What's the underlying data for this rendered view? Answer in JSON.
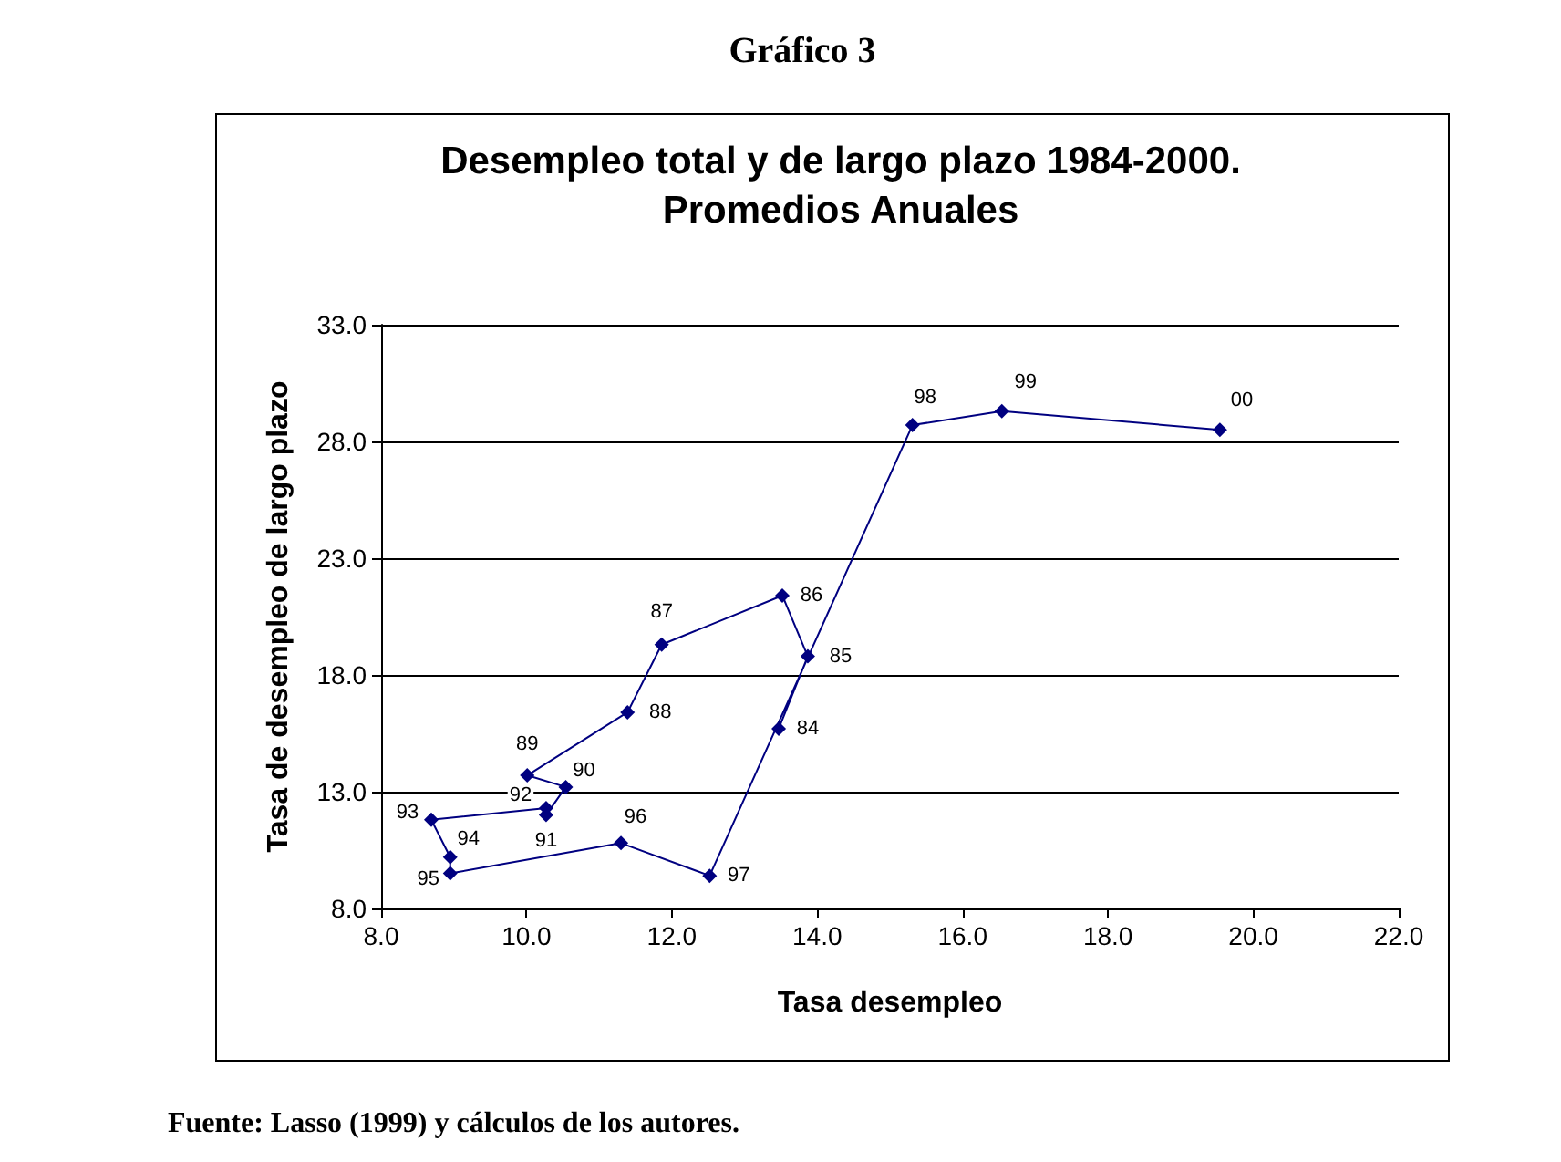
{
  "chart_data": {
    "type": "line",
    "title": "Desempleo total y de largo plazo 1984-2000.\nPromedios Anuales",
    "xlabel": "Tasa desempleo",
    "ylabel": "Tasa de desempleo de largo plazo",
    "series": [
      {
        "color": "#000080",
        "x": [
          13.47,
          13.87,
          13.52,
          11.86,
          11.39,
          10.01,
          10.54,
          10.27,
          10.27,
          8.69,
          8.95,
          8.95,
          11.3,
          12.52,
          15.31,
          16.54,
          19.54
        ],
        "values": [
          15.7,
          18.8,
          21.4,
          19.3,
          16.4,
          13.7,
          13.2,
          12.0,
          12.3,
          11.8,
          10.2,
          9.5,
          10.8,
          9.4,
          28.7,
          29.3,
          28.5
        ]
      }
    ],
    "xlim": [
      8,
      22
    ],
    "ylim": [
      8,
      33
    ],
    "xticks": [
      {
        "value": 8,
        "label": "8.0"
      },
      {
        "value": 10,
        "label": "10.0"
      },
      {
        "value": 12,
        "label": "12.0"
      },
      {
        "value": 14,
        "label": "14.0"
      },
      {
        "value": 16,
        "label": "16.0"
      },
      {
        "value": 18,
        "label": "18.0"
      },
      {
        "value": 20,
        "label": "20.0"
      },
      {
        "value": 22,
        "label": "22.0"
      }
    ],
    "yticks": [
      {
        "value": 8,
        "label": "8.0"
      },
      {
        "value": 13,
        "label": "13.0"
      },
      {
        "value": 18,
        "label": "18.0"
      },
      {
        "value": 23,
        "label": "23.0"
      },
      {
        "value": 28,
        "label": "28.0"
      },
      {
        "value": 33,
        "label": "33.0"
      }
    ],
    "grid": "y",
    "marker": "diamond",
    "line_style": "solid",
    "annotations": [
      "Gráfico 3",
      {
        "text": "84",
        "x": 13.47,
        "y": 15.7
      },
      {
        "text": "85",
        "x": 13.87,
        "y": 18.8
      },
      {
        "text": "86",
        "x": 13.52,
        "y": 21.4
      },
      {
        "text": "87",
        "x": 11.86,
        "y": 19.3
      },
      {
        "text": "88",
        "x": 11.39,
        "y": 16.4
      },
      {
        "text": "89",
        "x": 10.01,
        "y": 13.7
      },
      {
        "text": "90",
        "x": 10.54,
        "y": 13.2
      },
      {
        "text": "91",
        "x": 10.27,
        "y": 12.0
      },
      {
        "text": "92",
        "x": 10.27,
        "y": 12.3
      },
      {
        "text": "93",
        "x": 8.69,
        "y": 11.8
      },
      {
        "text": "94",
        "x": 8.95,
        "y": 10.2
      },
      {
        "text": "95",
        "x": 8.95,
        "y": 9.5
      },
      {
        "text": "96",
        "x": 11.3,
        "y": 10.8
      },
      {
        "text": "97",
        "x": 12.52,
        "y": 9.4
      },
      {
        "text": "98",
        "x": 15.31,
        "y": 28.7
      },
      {
        "text": "99",
        "x": 16.54,
        "y": 29.3
      },
      {
        "text": "00",
        "x": 19.54,
        "y": 28.5
      },
      "Fuente: Lasso (1999) y cálculos de los autores."
    ]
  }
}
